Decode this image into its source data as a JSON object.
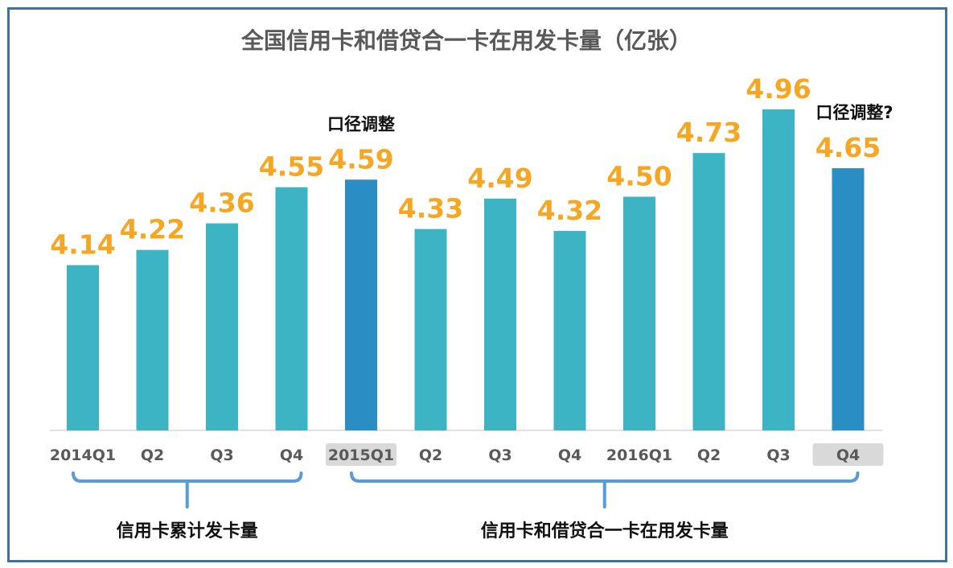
{
  "chart_data": {
    "type": "bar",
    "title": "全国信用卡和借贷合一卡在用发卡量（亿张）",
    "categories": [
      "2014Q1",
      "Q2",
      "Q3",
      "Q4",
      "2015Q1",
      "Q2",
      "Q3",
      "Q4",
      "2016Q1",
      "Q2",
      "Q3",
      "Q4"
    ],
    "values": [
      4.14,
      4.22,
      4.36,
      4.55,
      4.59,
      4.33,
      4.49,
      4.32,
      4.5,
      4.73,
      4.96,
      4.65
    ],
    "value_labels": [
      "4.14",
      "4.22",
      "4.36",
      "4.55",
      "4.59",
      "4.33",
      "4.49",
      "4.32",
      "4.50",
      "4.73",
      "4.96",
      "4.65"
    ],
    "ylim": [
      3.27,
      5.04
    ],
    "highlighted_indices": [
      4,
      11
    ],
    "annotations": [
      {
        "index": 4,
        "text": "口径调整"
      },
      {
        "index": 11,
        "text": "口径调整?"
      }
    ],
    "groups": [
      {
        "label": "信用卡累计发卡量",
        "from": 0,
        "to": 3
      },
      {
        "label": "信用卡和借贷合一卡在用发卡量",
        "from": 4,
        "to": 11
      }
    ],
    "colors": {
      "bar": "#3cb4c3",
      "bar_highlight": "#2a8ec4",
      "value_label": "#f5a623",
      "bracket": "#5b9bd5",
      "tick_highlight_bg": "#d9d9d9",
      "frame": "#41719c"
    }
  }
}
